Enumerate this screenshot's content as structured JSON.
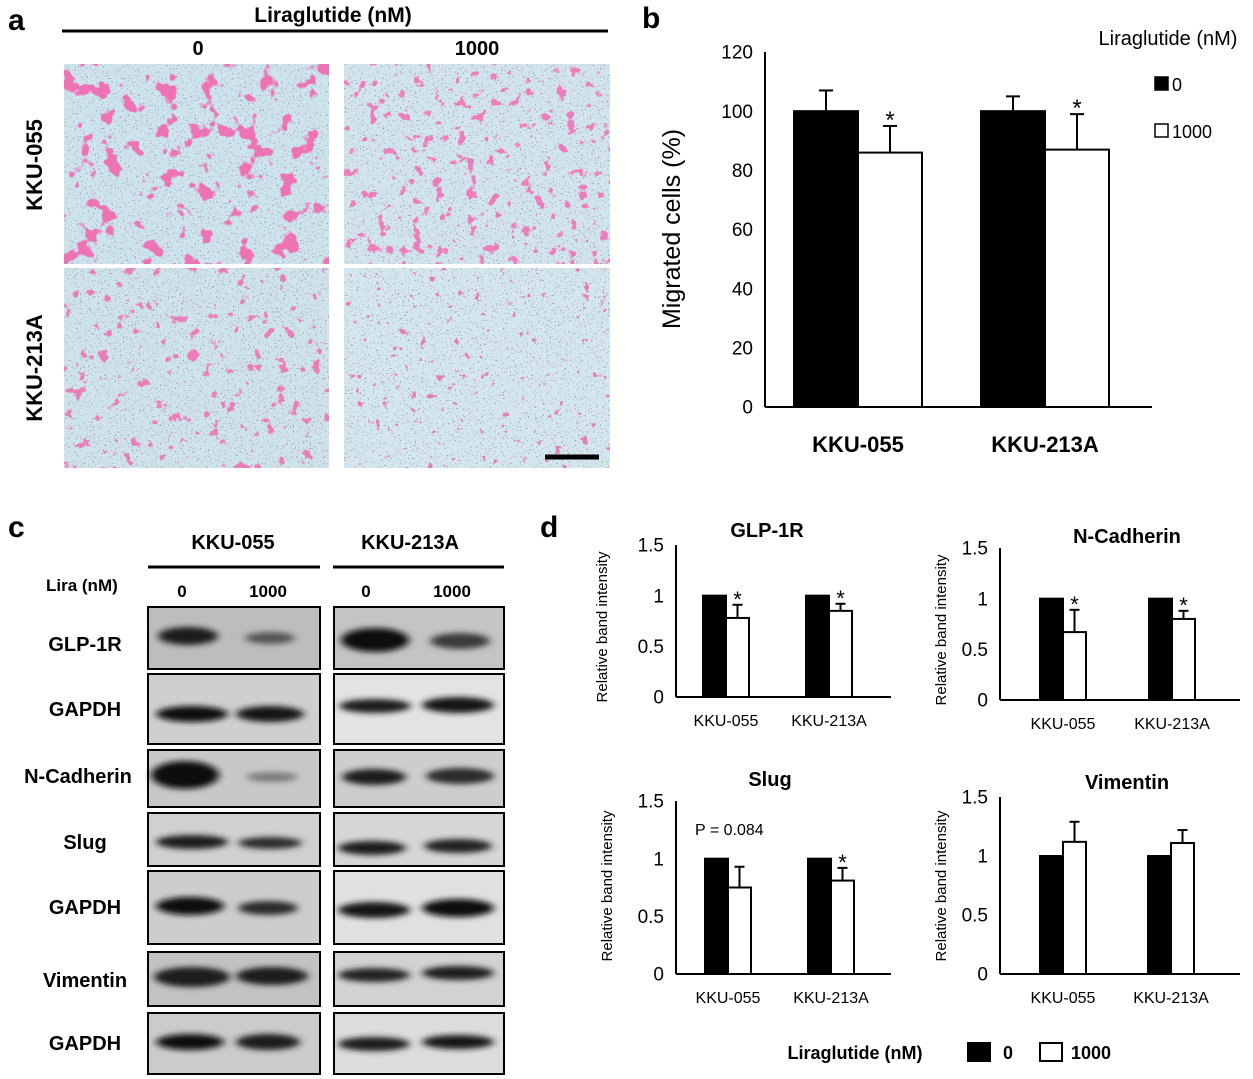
{
  "panels": {
    "a": "a",
    "b": "b",
    "c": "c",
    "d": "d"
  },
  "panel_a": {
    "header": "Liraglutide (nM)",
    "columns": [
      "0",
      "1000"
    ],
    "rows": [
      "KKU-055",
      "KKU-213A"
    ]
  },
  "panel_b": {
    "legend_title": "Liraglutide (nM)",
    "legend": [
      "0",
      "1000"
    ]
  },
  "panel_c": {
    "groups": [
      "KKU-055",
      "KKU-213A"
    ],
    "lira_label": "Lira (nM)",
    "doses": [
      "0",
      "1000",
      "0",
      "1000"
    ],
    "rows": [
      "GLP-1R",
      "GAPDH",
      "N-Cadherin",
      "Slug",
      "GAPDH",
      "Vimentin",
      "GAPDH"
    ]
  },
  "panel_d": {
    "legend_title": "Liraglutide (nM)",
    "legend": [
      "0",
      "1000"
    ],
    "pvalue": "P = 0.084"
  },
  "colors": {
    "control": "#000000",
    "treated": "#ffffff",
    "stain": "#e0307a",
    "background_stain": "#cde4ec"
  },
  "chart_data": [
    {
      "type": "bar",
      "panel": "b",
      "title": "",
      "ylabel": "Migrated cells (%)",
      "xlabel": "",
      "categories": [
        "KKU-055",
        "KKU-213A"
      ],
      "ylim": [
        0,
        120
      ],
      "yticks": [
        "0",
        "20",
        "40",
        "60",
        "80",
        "100",
        "120"
      ],
      "series": [
        {
          "name": "0",
          "values": [
            100,
            100
          ],
          "errors": [
            7,
            5
          ]
        },
        {
          "name": "1000",
          "values": [
            86,
            87
          ],
          "errors": [
            9,
            12
          ]
        }
      ],
      "annotations": [
        "*",
        "*"
      ]
    },
    {
      "type": "bar",
      "panel": "d",
      "title": "GLP-1R",
      "ylabel": "Relative band intensity",
      "categories": [
        "KKU-055",
        "KKU-213A"
      ],
      "ylim": [
        0,
        1.5
      ],
      "yticks": [
        "0",
        "0.5",
        "1",
        "1.5"
      ],
      "series": [
        {
          "name": "0",
          "values": [
            1.0,
            1.0
          ],
          "errors": [
            0,
            0
          ]
        },
        {
          "name": "1000",
          "values": [
            0.78,
            0.85
          ],
          "errors": [
            0.13,
            0.07
          ]
        }
      ],
      "annotations": [
        "*",
        "*"
      ]
    },
    {
      "type": "bar",
      "panel": "d",
      "title": "N-Cadherin",
      "ylabel": "Relative band intensity",
      "categories": [
        "KKU-055",
        "KKU-213A"
      ],
      "ylim": [
        0,
        1.5
      ],
      "yticks": [
        "0",
        "0.5",
        "1",
        "1.5"
      ],
      "series": [
        {
          "name": "0",
          "values": [
            1.0,
            1.0
          ],
          "errors": [
            0,
            0
          ]
        },
        {
          "name": "1000",
          "values": [
            0.67,
            0.8
          ],
          "errors": [
            0.22,
            0.08
          ]
        }
      ],
      "annotations": [
        "*",
        "*"
      ]
    },
    {
      "type": "bar",
      "panel": "d",
      "title": "Slug",
      "ylabel": "Relative band intensity",
      "categories": [
        "KKU-055",
        "KKU-213A"
      ],
      "ylim": [
        0,
        1.5
      ],
      "yticks": [
        "0",
        "0.5",
        "1",
        "1.5"
      ],
      "series": [
        {
          "name": "0",
          "values": [
            1.0,
            1.0
          ],
          "errors": [
            0,
            0
          ]
        },
        {
          "name": "1000",
          "values": [
            0.75,
            0.81
          ],
          "errors": [
            0.18,
            0.11
          ]
        }
      ],
      "annotations": [
        "",
        "*"
      ]
    },
    {
      "type": "bar",
      "panel": "d",
      "title": "Vimentin",
      "ylabel": "Relative band intensity",
      "categories": [
        "KKU-055",
        "KKU-213A"
      ],
      "ylim": [
        0,
        1.5
      ],
      "yticks": [
        "0",
        "0.5",
        "1",
        "1.5"
      ],
      "series": [
        {
          "name": "0",
          "values": [
            1.0,
            1.0
          ],
          "errors": [
            0,
            0
          ]
        },
        {
          "name": "1000",
          "values": [
            1.12,
            1.11
          ],
          "errors": [
            0.17,
            0.11
          ]
        }
      ],
      "annotations": [
        "",
        ""
      ]
    }
  ]
}
